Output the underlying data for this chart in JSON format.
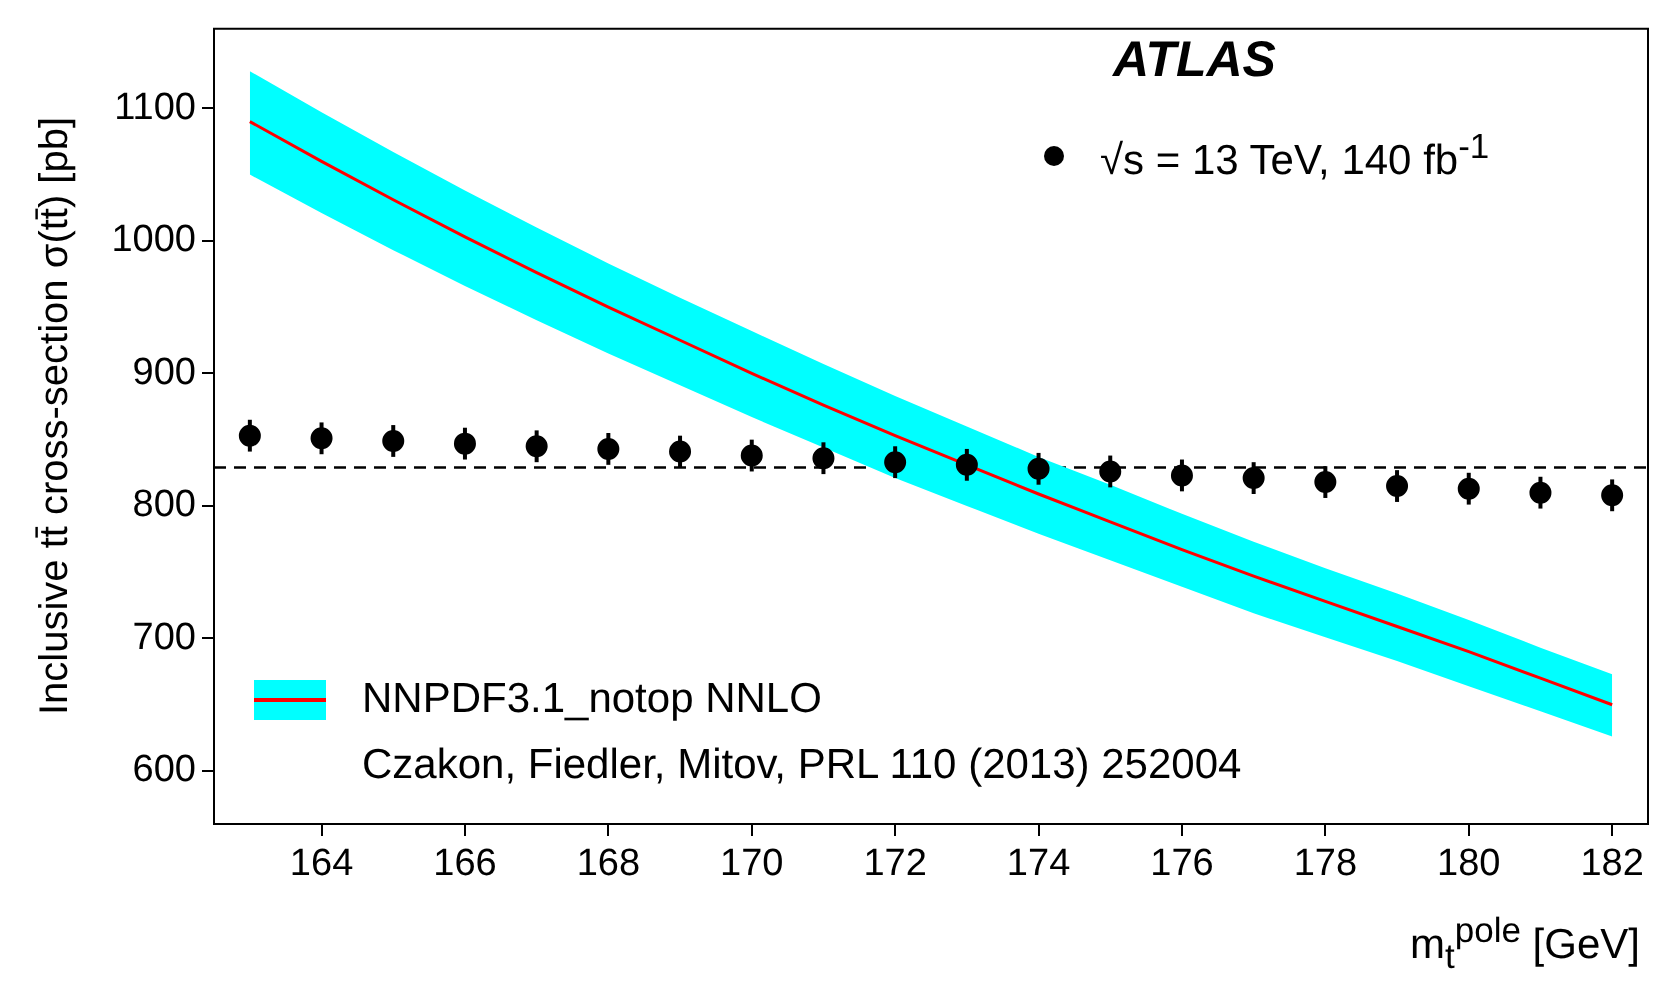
{
  "chart_data": {
    "type": "scatter",
    "xlabel": "m$_{t}$$^{pole}$ [GeV]",
    "ylabel": "Inclusive tt̄ cross-section σ(tt̄) [pb]",
    "xlim": [
      162.5,
      182.5
    ],
    "xticks": [
      164,
      166,
      168,
      170,
      172,
      174,
      176,
      178,
      180,
      182
    ],
    "ylim": [
      560,
      1160
    ],
    "yticks": [
      600,
      700,
      800,
      900,
      1000,
      1100
    ],
    "grid": false,
    "legend": "bottom left",
    "series": [
      {
        "name": "NNPDF3.1_notop NNLO",
        "type": "line",
        "marker": "none",
        "color": "#ff0000",
        "x": [
          163,
          164,
          165,
          166,
          167,
          168,
          169,
          170,
          171,
          172,
          173,
          174,
          175,
          176,
          177,
          178,
          179,
          180,
          181,
          182
        ],
        "values": [
          1090,
          1060,
          1031,
          1003,
          976,
          950,
          925,
          900,
          876,
          853,
          831,
          809,
          788,
          767,
          747,
          728,
          709,
          690,
          670,
          650
        ],
        "lower": [
          1050,
          1021,
          993,
          966,
          940,
          915,
          891,
          867,
          844,
          821,
          800,
          779,
          759,
          739,
          719,
          701,
          683,
          664,
          645,
          626
        ],
        "upper": [
          1128,
          1097,
          1067,
          1038,
          1010,
          983,
          957,
          932,
          907,
          883,
          860,
          837,
          816,
          794,
          773,
          753,
          734,
          714,
          693,
          673
        ]
      },
      {
        "name": "√s = 13 TeV, 140 fb$^{-1}$",
        "marker": "circle",
        "color": "#000000",
        "x": [
          163,
          164,
          165,
          166,
          167,
          168,
          169,
          170,
          171,
          172,
          173,
          174,
          175,
          176,
          177,
          178,
          179,
          180,
          181,
          182
        ],
        "values": [
          853,
          851,
          849,
          847,
          845,
          843,
          841,
          838,
          836,
          833,
          831,
          828,
          826,
          823,
          821,
          818,
          815,
          813,
          810,
          808
        ],
        "errors": [
          12,
          12,
          12,
          12,
          12,
          12,
          12,
          12,
          12,
          12,
          12,
          12,
          12,
          12,
          12,
          12,
          12,
          12,
          12,
          12
        ]
      }
    ],
    "ref_lines": [
      {
        "axis": "y",
        "value": 829,
        "color": "#000000",
        "line_style": "dashed"
      }
    ],
    "annotations": [
      "ATLAS",
      "Czakon, Fiedler, Mitov, PRL 110 (2013) 252004"
    ]
  }
}
